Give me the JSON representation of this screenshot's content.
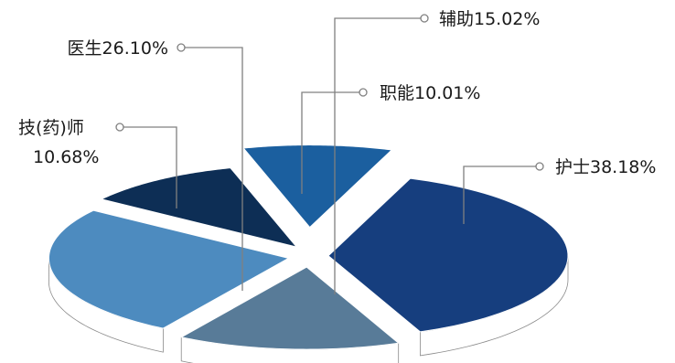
{
  "chart_data": {
    "type": "pie",
    "title": "",
    "slices": [
      {
        "label": "护士",
        "value": 38.18,
        "display": "护士38.18%",
        "color": "#163e7e"
      },
      {
        "label": "辅助",
        "value": 15.02,
        "display": "辅助15.02%",
        "color": "#587b98"
      },
      {
        "label": "医生",
        "value": 26.1,
        "display": "医生26.10%",
        "color": "#4d8bbf"
      },
      {
        "label": "技(药)师",
        "value": 10.68,
        "display_line1": "技(药)师",
        "display_line2": "10.68%",
        "color": "#0d2e55"
      },
      {
        "label": "职能",
        "value": 10.01,
        "display": "职能10.01%",
        "color": "#1b5f9f"
      }
    ],
    "legend": "none (leader-line labels)",
    "style": "3d exploded pie"
  }
}
